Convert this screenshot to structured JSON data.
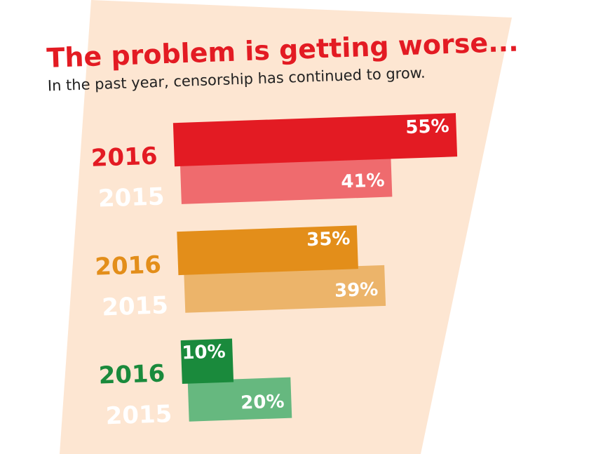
{
  "chart_data": {
    "type": "bar",
    "orientation": "horizontal",
    "title": "The problem is getting worse...",
    "subtitle": "In the past year, censorship has continued to grow.",
    "xlim": [
      0,
      60
    ],
    "groups": [
      {
        "categories": [
          "2016",
          "2015"
        ],
        "values": [
          55,
          41
        ],
        "value_labels": [
          "55%",
          "41%"
        ],
        "colors": [
          "#e31b23",
          "#ef6b6e"
        ],
        "label_colors": [
          "#e31b23",
          "#ffffff"
        ]
      },
      {
        "categories": [
          "2016",
          "2015"
        ],
        "values": [
          35,
          39
        ],
        "value_labels": [
          "35%",
          "39%"
        ],
        "colors": [
          "#e38e1a",
          "#ecb46a"
        ],
        "label_colors": [
          "#e38e1a",
          "#ffffff"
        ]
      },
      {
        "categories": [
          "2016",
          "2015"
        ],
        "values": [
          10,
          20
        ],
        "value_labels": [
          "10%",
          "20%"
        ],
        "colors": [
          "#1a8a3c",
          "#66b87f"
        ],
        "label_colors": [
          "#1a8a3c",
          "#ffffff"
        ]
      }
    ]
  }
}
